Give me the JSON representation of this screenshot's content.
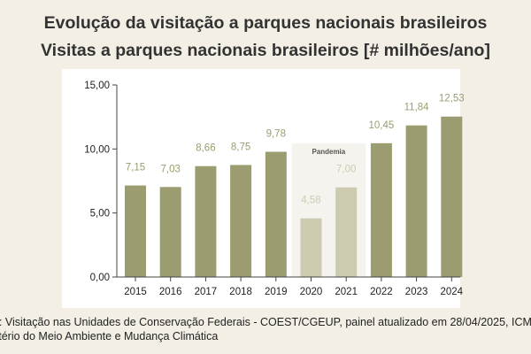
{
  "title": "Evolução da visitação a parques nacionais brasileiros",
  "subtitle": "Visitas a parques nacionais brasileiros [# milhões/ano]",
  "source_line1": "e: Visitação nas Unidades de Conservação Federais - COEST/CGEUP, painel atualizado em 28/04/2025, ICM",
  "source_line2": "stério do Meio Ambiente e Mudança Climática",
  "chart_data": {
    "type": "bar",
    "categories": [
      "2015",
      "2016",
      "2017",
      "2018",
      "2019",
      "2020",
      "2021",
      "2022",
      "2023",
      "2024"
    ],
    "values": [
      7.15,
      7.03,
      8.66,
      8.75,
      9.78,
      4.58,
      7.0,
      10.45,
      11.84,
      12.53
    ],
    "labels": [
      "7,15",
      "7,03",
      "8,66",
      "8,75",
      "9,78",
      "4,58",
      "7,00",
      "10,45",
      "11,84",
      "12,53"
    ],
    "ylim": [
      0,
      15
    ],
    "yticks": [
      0,
      5,
      10,
      15
    ],
    "ytick_labels": [
      "0,00",
      "5,00",
      "10,00",
      "15,00"
    ],
    "grid": false,
    "annotation": {
      "text": "Pandemia",
      "categories": [
        "2020",
        "2021"
      ]
    },
    "colors": {
      "bar": "#9b9d71",
      "pandemic_bar": "#cccbb0",
      "label": "#9b9d71",
      "pandemic_label": "#cccbb0",
      "pandemic_band": "#f5f3ee"
    }
  }
}
